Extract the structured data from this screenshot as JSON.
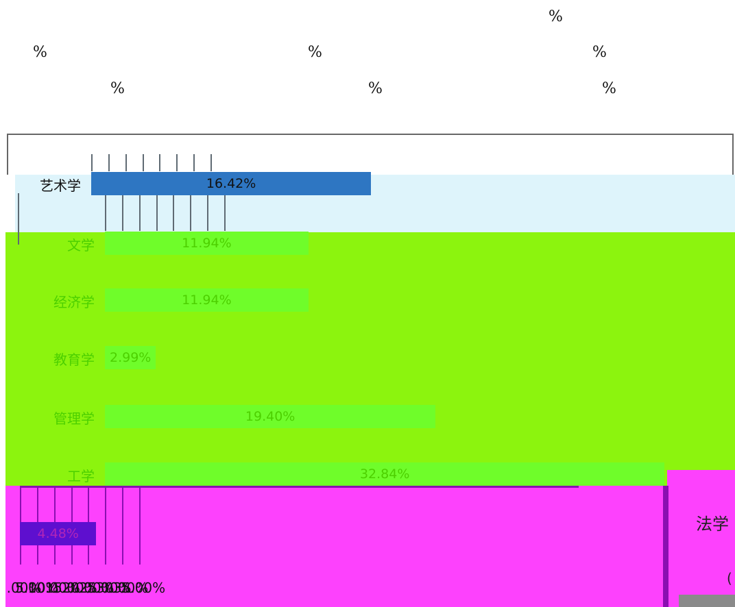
{
  "header_marks": [
    "%",
    "%",
    "%",
    "%",
    "%",
    "%",
    "%"
  ],
  "chart_data": {
    "type": "bar",
    "orientation": "horizontal",
    "categories": [
      "艺术学",
      "文学",
      "经济学",
      "教育学",
      "管理学",
      "工学",
      "法学"
    ],
    "values": [
      16.42,
      11.94,
      11.94,
      2.99,
      19.4,
      32.84,
      4.48
    ],
    "data_labels": [
      "16.42%",
      "11.94%",
      "11.94%",
      "2.99%",
      "19.40%",
      "32.84%",
      "4.48%"
    ],
    "xlim": [
      0,
      35
    ],
    "x_ticks": [
      ".00%",
      "5.00%",
      "10.00%",
      "15.00%",
      "20.00%",
      "25.00%",
      "30.00%",
      "35.00%"
    ],
    "grid": true,
    "colors": {
      "bar_top": "#2e76c2",
      "bar_green": "#6ffd2a",
      "bar_pink": "#5e0fcf",
      "band_white": "#ffffff",
      "band_cyan": "#def4fb",
      "band_green": "#8cf40e",
      "band_pink": "#fd41fd",
      "grid_dark": "#5f6a73",
      "grid_pink": "#8a0fb1",
      "label_green": "#4cd000",
      "label_pink": "#b225b8"
    }
  },
  "side_panel": {
    "label": "法学",
    "value_fragment": "("
  }
}
